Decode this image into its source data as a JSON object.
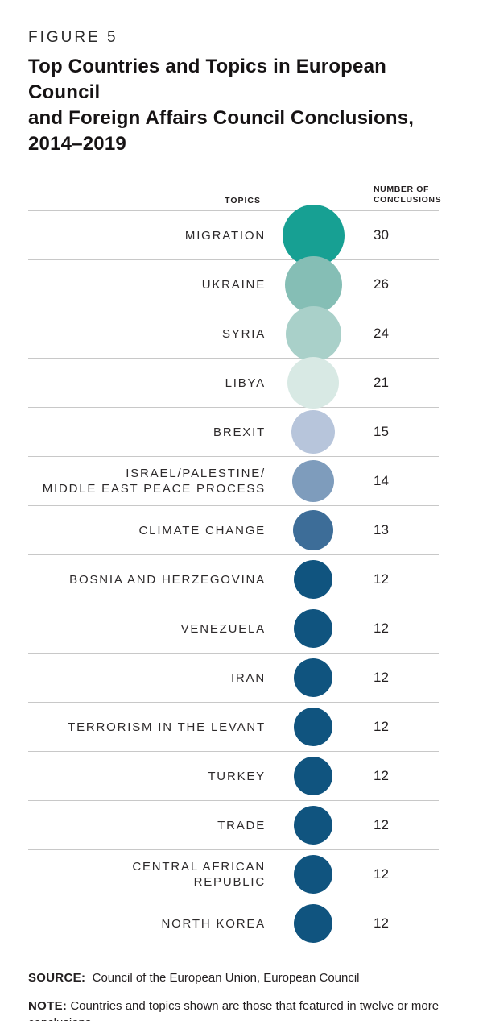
{
  "figure": {
    "label": "FIGURE 5",
    "title_lines": [
      "Top Countries and Topics in European Council",
      "and Foreign Affairs Council Conclusions,",
      "2014–2019"
    ]
  },
  "chart_data": {
    "type": "bubble",
    "title": "Top Countries and Topics in European Council and Foreign Affairs Council Conclusions, 2014–2019",
    "columns": {
      "topics": "TOPICS",
      "number_lines": [
        "NUMBER OF",
        "CONCLUSIONS"
      ]
    },
    "legend": "circle area proportional to number of conclusions",
    "rows": [
      {
        "label_lines": [
          "MIGRATION"
        ],
        "value": 30,
        "color": "#17a093"
      },
      {
        "label_lines": [
          "UKRAINE"
        ],
        "value": 26,
        "color": "#85beb5"
      },
      {
        "label_lines": [
          "SYRIA"
        ],
        "value": 24,
        "color": "#a9d0c9"
      },
      {
        "label_lines": [
          "LIBYA"
        ],
        "value": 21,
        "color": "#d8e9e4"
      },
      {
        "label_lines": [
          "BREXIT"
        ],
        "value": 15,
        "color": "#b7c5db"
      },
      {
        "label_lines": [
          "ISRAEL/PALESTINE/",
          "MIDDLE EAST PEACE PROCESS"
        ],
        "value": 14,
        "color": "#7e9cbc"
      },
      {
        "label_lines": [
          "CLIMATE CHANGE"
        ],
        "value": 13,
        "color": "#3d6d98"
      },
      {
        "label_lines": [
          "BOSNIA AND HERZEGOVINA"
        ],
        "value": 12,
        "color": "#10547f"
      },
      {
        "label_lines": [
          "VENEZUELA"
        ],
        "value": 12,
        "color": "#10547f"
      },
      {
        "label_lines": [
          "IRAN"
        ],
        "value": 12,
        "color": "#10547f"
      },
      {
        "label_lines": [
          "TERRORISM IN THE LEVANT"
        ],
        "value": 12,
        "color": "#10547f"
      },
      {
        "label_lines": [
          "TURKEY"
        ],
        "value": 12,
        "color": "#10547f"
      },
      {
        "label_lines": [
          "TRADE"
        ],
        "value": 12,
        "color": "#10547f"
      },
      {
        "label_lines": [
          "CENTRAL AFRICAN",
          "REPUBLIC"
        ],
        "value": 12,
        "color": "#10547f"
      },
      {
        "label_lines": [
          "NORTH KOREA"
        ],
        "value": 12,
        "color": "#10547f"
      }
    ]
  },
  "footer": {
    "source_label": "SOURCE:",
    "source_text": "Council of the European Union, European Council",
    "note_label": "NOTE:",
    "note_text": "Countries and topics shown are those that featured in twelve or more conclusions."
  }
}
